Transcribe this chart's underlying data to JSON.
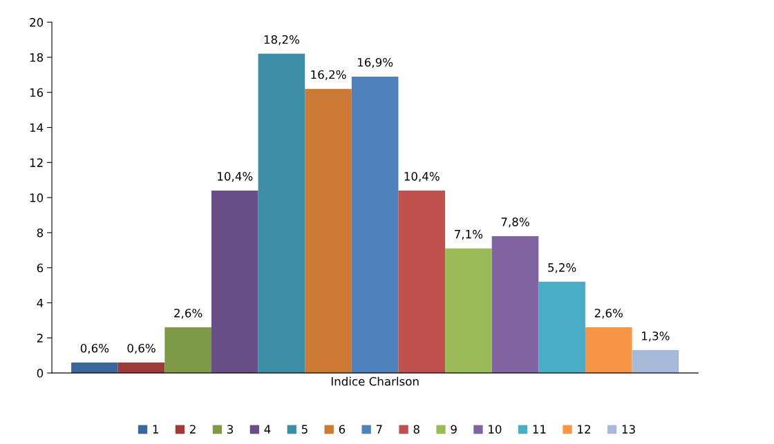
{
  "chart_data": {
    "type": "bar",
    "xlabel": "Indice Charlson",
    "categories": [
      null
    ],
    "series": [
      {
        "name": "1",
        "color": "#3c679a",
        "values": [
          0.6
        ],
        "value_labels": [
          "0,6%"
        ]
      },
      {
        "name": "2",
        "color": "#9d3b38",
        "values": [
          0.6
        ],
        "value_labels": [
          "0,6%"
        ]
      },
      {
        "name": "3",
        "color": "#7e9a48",
        "values": [
          2.6
        ],
        "value_labels": [
          "2,6%"
        ]
      },
      {
        "name": "4",
        "color": "#694f87",
        "values": [
          10.4
        ],
        "value_labels": [
          "10,4%"
        ]
      },
      {
        "name": "5",
        "color": "#3d8ea5",
        "values": [
          18.2
        ],
        "value_labels": [
          "18,2%"
        ]
      },
      {
        "name": "6",
        "color": "#cc7a35",
        "values": [
          16.2
        ],
        "value_labels": [
          "16,2%"
        ]
      },
      {
        "name": "7",
        "color": "#4f81bd",
        "values": [
          16.9
        ],
        "value_labels": [
          "16,9%"
        ]
      },
      {
        "name": "8",
        "color": "#c0504d",
        "values": [
          10.4
        ],
        "value_labels": [
          "10,4%"
        ]
      },
      {
        "name": "9",
        "color": "#9bbb59",
        "values": [
          7.1
        ],
        "value_labels": [
          "7,1%"
        ]
      },
      {
        "name": "10",
        "color": "#8064a2",
        "values": [
          7.8
        ],
        "value_labels": [
          "7,8%"
        ]
      },
      {
        "name": "11",
        "color": "#4bacc6",
        "values": [
          5.2
        ],
        "value_labels": [
          "5,2%"
        ]
      },
      {
        "name": "12",
        "color": "#f79646",
        "values": [
          2.6
        ],
        "value_labels": [
          "2,6%"
        ]
      },
      {
        "name": "13",
        "color": "#a9b9d9",
        "values": [
          1.3
        ],
        "value_labels": [
          "1,3%"
        ]
      }
    ],
    "ylim": [
      0,
      20
    ],
    "yticks": [
      0,
      2,
      4,
      6,
      8,
      10,
      12,
      14,
      16,
      18,
      20
    ],
    "grid": false,
    "legend": "bottom",
    "tick_labels": "y"
  }
}
